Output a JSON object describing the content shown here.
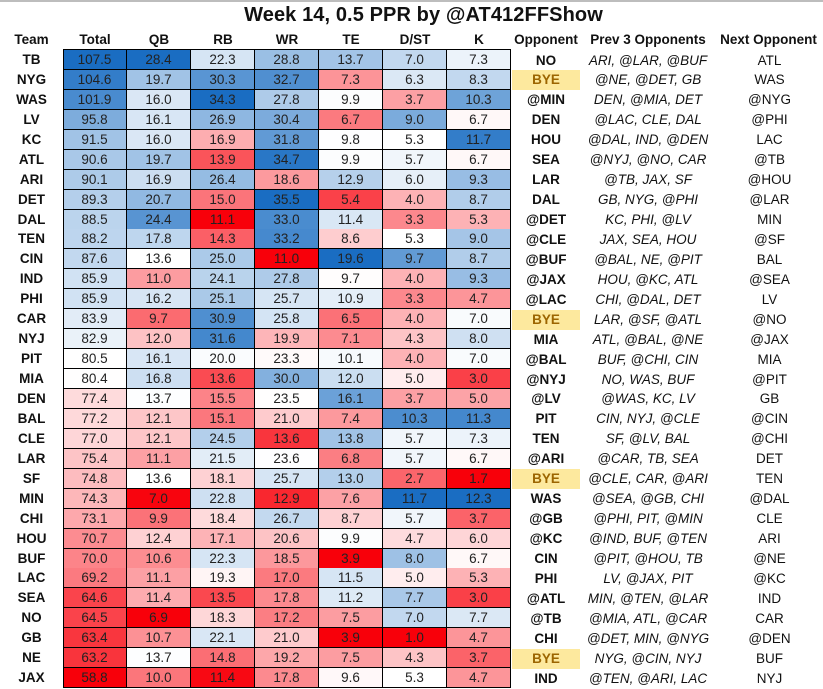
{
  "chart_data": {
    "type": "table",
    "title": "Week 14, 0.5 PPR by @AT412FFShow",
    "columns": [
      "Team",
      "Total",
      "QB",
      "RB",
      "WR",
      "TE",
      "D/ST",
      "K",
      "Opponent",
      "Prev  3 Opponents",
      "Next Opponent"
    ],
    "numeric_columns": [
      "Total",
      "QB",
      "RB",
      "WR",
      "TE",
      "D/ST",
      "K"
    ],
    "color_scale": {
      "low": "#f8000a",
      "mid": "#ffffff",
      "high": "#1a6dc2"
    },
    "bye_colors": {
      "background": "#fde99e",
      "text": "#9c6500"
    },
    "rows": [
      {
        "team": "TB",
        "values": [
          "107.5",
          "28.4",
          "22.3",
          "28.8",
          "13.7",
          "7.0",
          "7.3"
        ],
        "opponent": "NO",
        "prev": "ARI, @LAR, @BUF",
        "next": "ATL"
      },
      {
        "team": "NYG",
        "values": [
          "104.6",
          "19.7",
          "30.3",
          "32.7",
          "7.3",
          "6.3",
          "8.3"
        ],
        "opponent": "BYE",
        "prev": "@NE, @DET, GB",
        "next": "WAS"
      },
      {
        "team": "WAS",
        "values": [
          "101.9",
          "16.0",
          "34.3",
          "27.8",
          "9.9",
          "3.7",
          "10.3"
        ],
        "opponent": "@MIN",
        "prev": "DEN, @MIA, DET",
        "next": "@NYG"
      },
      {
        "team": "LV",
        "values": [
          "95.8",
          "16.1",
          "26.9",
          "30.4",
          "6.7",
          "9.0",
          "6.7"
        ],
        "opponent": "DEN",
        "prev": "@LAC, CLE, DAL",
        "next": "@PHI"
      },
      {
        "team": "KC",
        "values": [
          "91.5",
          "16.0",
          "16.9",
          "31.8",
          "9.8",
          "5.3",
          "11.7"
        ],
        "opponent": "HOU",
        "prev": "@DAL, IND, @DEN",
        "next": "LAC"
      },
      {
        "team": "ATL",
        "values": [
          "90.6",
          "19.7",
          "13.9",
          "34.7",
          "9.9",
          "5.7",
          "6.7"
        ],
        "opponent": "SEA",
        "prev": "@NYJ, @NO, CAR",
        "next": "@TB"
      },
      {
        "team": "ARI",
        "values": [
          "90.1",
          "16.9",
          "26.4",
          "18.6",
          "12.9",
          "6.0",
          "9.3"
        ],
        "opponent": "LAR",
        "prev": "@TB, JAX, SF",
        "next": "@HOU"
      },
      {
        "team": "DET",
        "values": [
          "89.3",
          "20.7",
          "15.0",
          "35.5",
          "5.4",
          "4.0",
          "8.7"
        ],
        "opponent": "DAL",
        "prev": "GB, NYG, @PHI",
        "next": "@LAR"
      },
      {
        "team": "DAL",
        "values": [
          "88.5",
          "24.4",
          "11.1",
          "33.0",
          "11.4",
          "3.3",
          "5.3"
        ],
        "opponent": "@DET",
        "prev": "KC, PHI, @LV",
        "next": "MIN"
      },
      {
        "team": "TEN",
        "values": [
          "88.2",
          "17.8",
          "14.3",
          "33.2",
          "8.6",
          "5.3",
          "9.0"
        ],
        "opponent": "@CLE",
        "prev": "JAX, SEA, HOU",
        "next": "@SF"
      },
      {
        "team": "CIN",
        "values": [
          "87.6",
          "13.6",
          "25.0",
          "11.0",
          "19.6",
          "9.7",
          "8.7"
        ],
        "opponent": "@BUF",
        "prev": "@BAL, NE, @PIT",
        "next": "BAL"
      },
      {
        "team": "IND",
        "values": [
          "85.9",
          "11.0",
          "24.1",
          "27.8",
          "9.7",
          "4.0",
          "9.3"
        ],
        "opponent": "@JAX",
        "prev": "HOU, @KC, ATL",
        "next": "@SEA"
      },
      {
        "team": "PHI",
        "values": [
          "85.9",
          "16.2",
          "25.1",
          "25.7",
          "10.9",
          "3.3",
          "4.7"
        ],
        "opponent": "@LAC",
        "prev": "CHI, @DAL, DET",
        "next": "LV"
      },
      {
        "team": "CAR",
        "values": [
          "83.9",
          "9.7",
          "30.9",
          "25.8",
          "6.5",
          "4.0",
          "7.0"
        ],
        "opponent": "BYE",
        "prev": "LAR, @SF, @ATL",
        "next": "@NO"
      },
      {
        "team": "NYJ",
        "values": [
          "82.9",
          "12.0",
          "31.6",
          "19.9",
          "7.1",
          "4.3",
          "8.0"
        ],
        "opponent": "MIA",
        "prev": "ATL, @BAL, @NE",
        "next": "@JAX"
      },
      {
        "team": "PIT",
        "values": [
          "80.5",
          "16.1",
          "20.0",
          "23.3",
          "10.1",
          "4.0",
          "7.0"
        ],
        "opponent": "@BAL",
        "prev": "BUF, @CHI, CIN",
        "next": "MIA"
      },
      {
        "team": "MIA",
        "values": [
          "80.4",
          "16.8",
          "13.6",
          "30.0",
          "12.0",
          "5.0",
          "3.0"
        ],
        "opponent": "@NYJ",
        "prev": "NO, WAS, BUF",
        "next": "@PIT"
      },
      {
        "team": "DEN",
        "values": [
          "77.4",
          "13.7",
          "15.5",
          "23.5",
          "16.1",
          "3.7",
          "5.0"
        ],
        "opponent": "@LV",
        "prev": "@WAS, KC, LV",
        "next": "GB"
      },
      {
        "team": "BAL",
        "values": [
          "77.2",
          "12.1",
          "15.1",
          "21.0",
          "7.4",
          "10.3",
          "11.3"
        ],
        "opponent": "PIT",
        "prev": "CIN, NYJ, @CLE",
        "next": "@CIN"
      },
      {
        "team": "CLE",
        "values": [
          "77.0",
          "12.1",
          "24.5",
          "13.6",
          "13.8",
          "5.7",
          "7.3"
        ],
        "opponent": "TEN",
        "prev": "SF, @LV, BAL",
        "next": "@CHI"
      },
      {
        "team": "LAR",
        "values": [
          "75.4",
          "11.1",
          "21.5",
          "23.6",
          "6.8",
          "5.7",
          "6.7"
        ],
        "opponent": "@ARI",
        "prev": "@CAR, TB, SEA",
        "next": "DET"
      },
      {
        "team": "SF",
        "values": [
          "74.8",
          "13.6",
          "18.1",
          "25.7",
          "13.0",
          "2.7",
          "1.7"
        ],
        "opponent": "BYE",
        "prev": "@CLE, CAR, @ARI",
        "next": "TEN"
      },
      {
        "team": "MIN",
        "values": [
          "74.3",
          "7.0",
          "22.8",
          "12.9",
          "7.6",
          "11.7",
          "12.3"
        ],
        "opponent": "WAS",
        "prev": "@SEA, @GB, CHI",
        "next": "@DAL"
      },
      {
        "team": "CHI",
        "values": [
          "73.1",
          "9.9",
          "18.4",
          "26.7",
          "8.7",
          "5.7",
          "3.7"
        ],
        "opponent": "@GB",
        "prev": "@PHI, PIT, @MIN",
        "next": "CLE"
      },
      {
        "team": "HOU",
        "values": [
          "70.7",
          "12.4",
          "17.1",
          "20.6",
          "9.9",
          "4.7",
          "6.0"
        ],
        "opponent": "@KC",
        "prev": "@IND, BUF, @TEN",
        "next": "ARI"
      },
      {
        "team": "BUF",
        "values": [
          "70.0",
          "10.6",
          "22.3",
          "18.5",
          "3.9",
          "8.0",
          "6.7"
        ],
        "opponent": "CIN",
        "prev": "@PIT, @HOU, TB",
        "next": "@NE"
      },
      {
        "team": "LAC",
        "values": [
          "69.2",
          "11.1",
          "19.3",
          "17.0",
          "11.5",
          "5.0",
          "5.3"
        ],
        "opponent": "PHI",
        "prev": "LV, @JAX, PIT",
        "next": "@KC"
      },
      {
        "team": "SEA",
        "values": [
          "64.6",
          "11.4",
          "13.5",
          "17.8",
          "11.2",
          "7.7",
          "3.0"
        ],
        "opponent": "@ATL",
        "prev": "MIN, @TEN, @LAR",
        "next": "IND"
      },
      {
        "team": "NO",
        "values": [
          "64.5",
          "6.9",
          "18.3",
          "17.2",
          "7.5",
          "7.0",
          "7.7"
        ],
        "opponent": "@TB",
        "prev": "@MIA, ATL, @CAR",
        "next": "CAR"
      },
      {
        "team": "GB",
        "values": [
          "63.4",
          "10.7",
          "22.1",
          "21.0",
          "3.9",
          "1.0",
          "4.7"
        ],
        "opponent": "CHI",
        "prev": "@DET, MIN, @NYG",
        "next": "@DEN"
      },
      {
        "team": "NE",
        "values": [
          "63.2",
          "13.7",
          "14.8",
          "19.2",
          "7.5",
          "4.3",
          "3.7"
        ],
        "opponent": "BYE",
        "prev": "NYG, @CIN, NYJ",
        "next": "BUF"
      },
      {
        "team": "JAX",
        "values": [
          "58.8",
          "10.0",
          "11.4",
          "17.8",
          "9.6",
          "5.3",
          "4.7"
        ],
        "opponent": "IND",
        "prev": "@TEN, @ARI, LAC",
        "next": "NYJ"
      }
    ]
  }
}
